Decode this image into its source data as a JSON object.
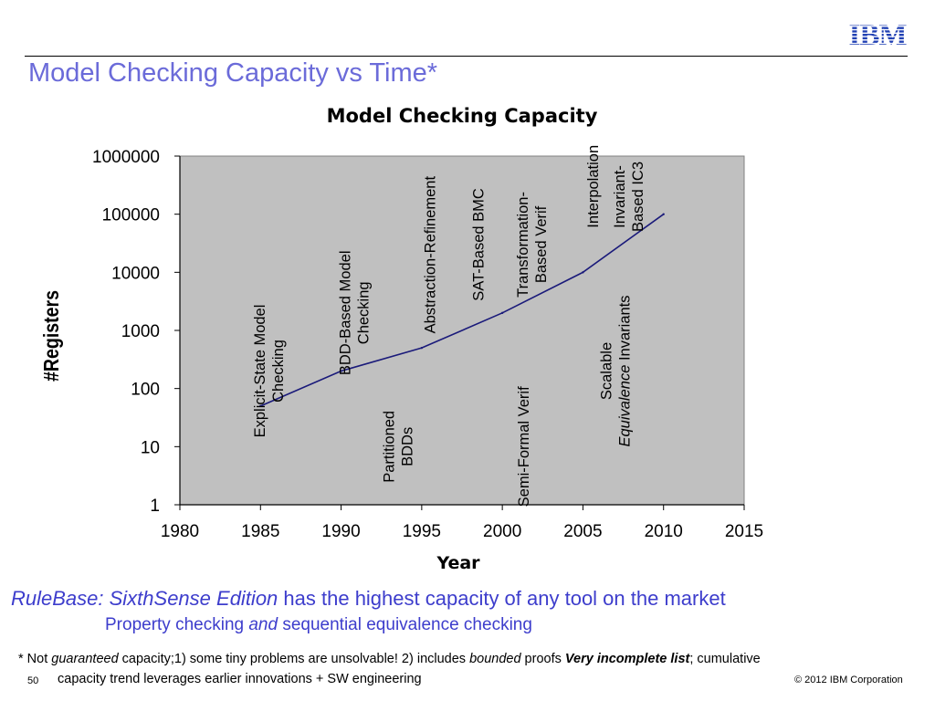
{
  "header": {
    "logo_text": "IBM",
    "title": "Model Checking Capacity vs Time*",
    "accent_color": "#6b6bd9",
    "logo_color": "#1f3fb3"
  },
  "chart_data": {
    "type": "line",
    "title": "Model Checking Capacity",
    "xlabel": "Year",
    "ylabel": "#Registers",
    "xlim": [
      1980,
      2015
    ],
    "ylim": [
      1,
      1000000
    ],
    "y_scale": "log",
    "x_ticks": [
      "1980",
      "1985",
      "1990",
      "1995",
      "2000",
      "2005",
      "2010",
      "2015"
    ],
    "y_ticks": [
      "1",
      "10",
      "100",
      "1000",
      "10000",
      "100000",
      "1000000"
    ],
    "plot_background": "#c0c0c0",
    "series": [
      {
        "color": "#1a1a7a",
        "x": [
          1985,
          1990,
          1995,
          2000,
          2005,
          2010
        ],
        "y": [
          50,
          200,
          500,
          2000,
          10000,
          100000
        ]
      }
    ],
    "annotations": [
      {
        "year": 1985.5,
        "y": 200,
        "lines": [
          "Explicit-State Model",
          "Checking"
        ]
      },
      {
        "year": 1990.8,
        "y": 2000,
        "lines": [
          "BDD-Based Model",
          "Checking"
        ]
      },
      {
        "year": 1993.5,
        "y": 10,
        "lines": [
          "Partitioned",
          "BDDs"
        ]
      },
      {
        "year": 1995.5,
        "y": 20000,
        "lines": [
          "Abstraction-Refinement"
        ]
      },
      {
        "year": 1998.5,
        "y": 30000,
        "lines": [
          "SAT-Based BMC"
        ]
      },
      {
        "year": 2001.8,
        "y": 30000,
        "lines": [
          "Transformation-",
          "Based Verif"
        ]
      },
      {
        "year": 2001.3,
        "y": 10,
        "lines": [
          "Semi-Formal Verif"
        ]
      },
      {
        "year": 2005.6,
        "y": 300000,
        "lines": [
          "Interpolation"
        ]
      },
      {
        "year": 2007.8,
        "y": 200000,
        "lines": [
          "Invariant-",
          "Based IC3"
        ]
      },
      {
        "year": 2007.0,
        "y": 200,
        "lines": [
          "Scalable",
          "Equivalence Invariants"
        ]
      }
    ]
  },
  "footer": {
    "line1_italic": "RuleBase: SixthSense Edition",
    "line1_rest": " has the highest capacity of any tool on the market",
    "line2_a": "Property checking ",
    "line2_italic": "and",
    "line2_b": " sequential equivalence checking",
    "note_a": "* Not ",
    "note_b": "guaranteed",
    "note_c": " capacity;1) some tiny problems are unsolvable! 2) includes ",
    "note_d": "bounded",
    "note_e": " proofs ",
    "note_f": "Very incomplete list",
    "note_g": "; cumulative",
    "note_line2": "capacity trend leverages earlier innovations + SW engineering",
    "slide_number": "50",
    "copyright": "© 2012 IBM Corporation"
  }
}
